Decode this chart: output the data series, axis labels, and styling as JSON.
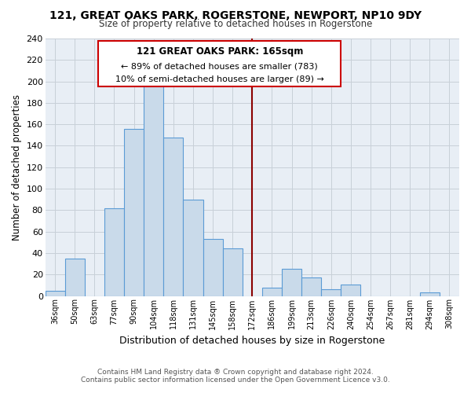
{
  "title": "121, GREAT OAKS PARK, ROGERSTONE, NEWPORT, NP10 9DY",
  "subtitle": "Size of property relative to detached houses in Rogerstone",
  "xlabel": "Distribution of detached houses by size in Rogerstone",
  "ylabel": "Number of detached properties",
  "categories": [
    "36sqm",
    "50sqm",
    "63sqm",
    "77sqm",
    "90sqm",
    "104sqm",
    "118sqm",
    "131sqm",
    "145sqm",
    "158sqm",
    "172sqm",
    "186sqm",
    "199sqm",
    "213sqm",
    "226sqm",
    "240sqm",
    "254sqm",
    "267sqm",
    "281sqm",
    "294sqm",
    "308sqm"
  ],
  "values": [
    5,
    35,
    0,
    82,
    156,
    201,
    148,
    90,
    53,
    44,
    0,
    8,
    25,
    17,
    6,
    11,
    0,
    0,
    0,
    3,
    0
  ],
  "bar_color": "#c9daea",
  "bar_edge_color": "#5b9bd5",
  "highlight_line_color": "#8b0000",
  "annotation_title": "121 GREAT OAKS PARK: 165sqm",
  "annotation_line1": "← 89% of detached houses are smaller (783)",
  "annotation_line2": "10% of semi-detached houses are larger (89) →",
  "annotation_box_edge": "#cc0000",
  "ylim": [
    0,
    240
  ],
  "yticks": [
    0,
    20,
    40,
    60,
    80,
    100,
    120,
    140,
    160,
    180,
    200,
    220,
    240
  ],
  "footnote1": "Contains HM Land Registry data ® Crown copyright and database right 2024.",
  "footnote2": "Contains public sector information licensed under the Open Government Licence v3.0.",
  "background_color": "#ffffff",
  "plot_bg_color": "#e8eef5",
  "grid_color": "#c8d0d8"
}
